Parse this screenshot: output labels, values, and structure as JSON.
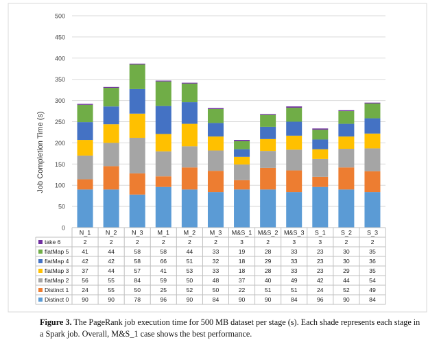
{
  "chart_data": {
    "type": "bar",
    "stacked": true,
    "ylabel": "Job Completion Time (s)",
    "xlabel": "",
    "ylim": [
      0,
      500
    ],
    "yticks": [
      0,
      50,
      100,
      150,
      200,
      250,
      300,
      350,
      400,
      450,
      500
    ],
    "grid": true,
    "legend": "data-table-left",
    "categories": [
      "N_1",
      "N_2",
      "N_3",
      "M_1",
      "M_2",
      "M_3",
      "M&S_1",
      "M&S_2",
      "M&S_3",
      "S_1",
      "S_2",
      "S_3"
    ],
    "series": [
      {
        "name": "Distinct 0",
        "color": "#5b9bd5",
        "values": [
          90,
          90,
          78,
          96,
          90,
          84,
          90,
          90,
          84,
          96,
          90,
          84
        ]
      },
      {
        "name": "Distinct 1",
        "color": "#ed7d31",
        "values": [
          24,
          55,
          50,
          25,
          52,
          50,
          22,
          51,
          51,
          24,
          52,
          49
        ]
      },
      {
        "name": "flatMap 2",
        "color": "#a5a5a5",
        "values": [
          56,
          55,
          84,
          59,
          50,
          48,
          37,
          40,
          49,
          42,
          44,
          54
        ]
      },
      {
        "name": "flatMap 3",
        "color": "#ffc000",
        "values": [
          37,
          44,
          57,
          41,
          53,
          33,
          18,
          28,
          33,
          23,
          29,
          35
        ]
      },
      {
        "name": "flatMap 4",
        "color": "#4472c4",
        "values": [
          42,
          42,
          58,
          66,
          51,
          32,
          18,
          29,
          33,
          23,
          30,
          36
        ]
      },
      {
        "name": "flatMap 5",
        "color": "#70ad47",
        "values": [
          41,
          44,
          58,
          58,
          44,
          33,
          19,
          28,
          33,
          23,
          30,
          35
        ]
      },
      {
        "name": "take 6",
        "color": "#7030a0",
        "values": [
          2,
          2,
          2,
          2,
          2,
          2,
          3,
          2,
          3,
          3,
          2,
          2
        ]
      }
    ]
  },
  "caption": {
    "label": "Figure 3.",
    "text": " The PageRank job execution time for 500 MB dataset per stage (s). Each shade represents each stage in a Spark job. Overall, M&S_1 case shows the best performance."
  }
}
